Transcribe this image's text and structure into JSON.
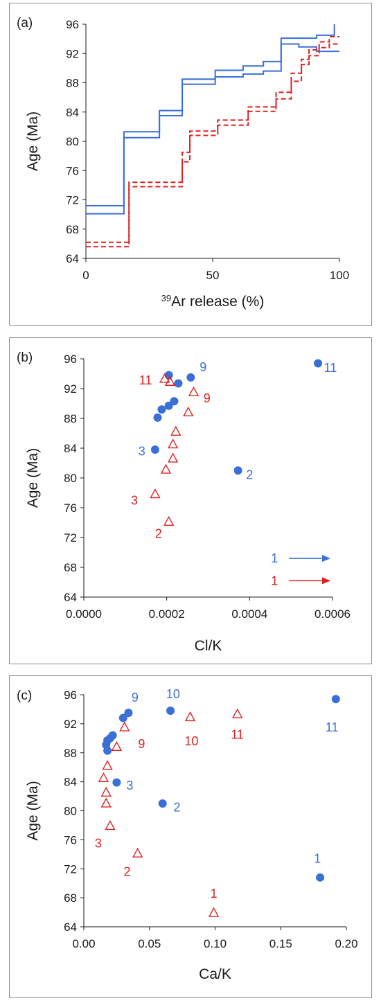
{
  "colors": {
    "blue": "#3a6fd8",
    "red": "#e02020",
    "axis": "#1a1a1a"
  },
  "chart_data": [
    {
      "panel": "(a)",
      "type": "line",
      "xlabel_base": "Ar release (%)",
      "xlabel_sup": "39",
      "ylabel": "Age (Ma)",
      "xlim": [
        0,
        100
      ],
      "ylim": [
        64,
        96
      ],
      "xticks": [
        "0",
        "50",
        "100"
      ],
      "yticks": [
        "64",
        "68",
        "72",
        "76",
        "80",
        "84",
        "88",
        "92",
        "96"
      ],
      "grid": false,
      "series": [
        {
          "color": "blue",
          "dash": false,
          "x": [
            0,
            15,
            15,
            29,
            29,
            38,
            38,
            51,
            51,
            62,
            62,
            70,
            70,
            77,
            77,
            91,
            91,
            98,
            98
          ],
          "y": [
            71.2,
            71.2,
            81.3,
            81.3,
            84.2,
            84.2,
            88.5,
            88.5,
            89.7,
            89.7,
            90.3,
            90.3,
            90.9,
            90.9,
            94.1,
            94.1,
            94.5,
            94.5,
            96.0
          ]
        },
        {
          "color": "blue",
          "dash": false,
          "x": [
            0,
            15,
            15,
            29,
            29,
            38,
            38,
            51,
            51,
            62,
            62,
            70,
            70,
            77,
            77,
            84,
            84,
            91,
            91,
            100
          ],
          "y": [
            70.1,
            70.1,
            80.5,
            80.5,
            83.5,
            83.5,
            87.8,
            87.8,
            88.8,
            88.8,
            89.2,
            89.2,
            89.6,
            89.6,
            93.3,
            93.3,
            92.9,
            92.9,
            92.3,
            92.3
          ]
        },
        {
          "color": "red",
          "dash": true,
          "x": [
            0,
            17,
            17,
            38,
            38,
            41,
            41,
            52,
            52,
            64,
            64,
            75,
            75,
            81,
            81,
            85,
            85,
            88,
            88,
            92,
            92,
            96,
            96,
            100
          ],
          "y": [
            66.2,
            66.2,
            74.4,
            74.4,
            78.5,
            78.5,
            81.4,
            81.4,
            82.9,
            82.9,
            84.7,
            84.7,
            86.7,
            86.7,
            89.3,
            89.3,
            91.2,
            91.2,
            92.5,
            92.5,
            93.6,
            93.6,
            94.3,
            94.3
          ]
        },
        {
          "color": "red",
          "dash": true,
          "x": [
            0,
            17,
            17,
            38,
            38,
            41,
            41,
            52,
            52,
            64,
            64,
            75,
            75,
            81,
            81,
            85,
            85,
            88,
            88,
            92,
            92,
            96,
            96,
            100
          ],
          "y": [
            65.6,
            65.6,
            73.8,
            73.8,
            77.2,
            77.2,
            80.8,
            80.8,
            82.2,
            82.2,
            84.1,
            84.1,
            85.8,
            85.8,
            88.2,
            88.2,
            90.5,
            90.5,
            91.7,
            91.7,
            92.8,
            92.8,
            93.3,
            93.3
          ]
        }
      ]
    },
    {
      "panel": "(b)",
      "type": "scatter",
      "xlabel": "Cl/K",
      "ylabel": "Age (Ma)",
      "xlim": [
        0,
        0.0006
      ],
      "ylim": [
        64,
        96
      ],
      "xticks": [
        "0.0000",
        "0.0002",
        "0.0004",
        "0.0006"
      ],
      "yticks": [
        "64",
        "68",
        "72",
        "76",
        "80",
        "84",
        "88",
        "92",
        "96"
      ],
      "grid": false,
      "series": [
        {
          "color": "blue",
          "marker": "circle",
          "x": [
            0.000172,
            0.000178,
            0.000188,
            0.000205,
            0.000218,
            0.000205,
            0.000228,
            0.000258,
            0.000372,
            0.000565
          ],
          "y": [
            83.8,
            88.1,
            89.2,
            89.7,
            90.3,
            93.8,
            92.7,
            93.5,
            81.0,
            95.4
          ]
        },
        {
          "color": "red",
          "marker": "triangle",
          "x": [
            0.000205,
            0.000172,
            0.000198,
            0.000215,
            0.000215,
            0.000222,
            0.000252,
            0.000265,
            0.000195,
            0.000208
          ],
          "y": [
            74.2,
            77.9,
            81.2,
            82.7,
            84.6,
            86.3,
            88.9,
            91.6,
            93.4,
            93.0
          ]
        }
      ],
      "labels": [
        {
          "text": "3",
          "color": "blue",
          "x": 0.00014,
          "y": 83.6
        },
        {
          "text": "9",
          "color": "blue",
          "x": 0.000288,
          "y": 94.9
        },
        {
          "text": "2",
          "color": "blue",
          "x": 0.0004,
          "y": 80.4
        },
        {
          "text": "11",
          "color": "blue",
          "x": 0.000595,
          "y": 94.8
        },
        {
          "text": "11",
          "color": "red",
          "x": 0.000149,
          "y": 93.1
        },
        {
          "text": "9",
          "color": "red",
          "x": 0.000297,
          "y": 90.7
        },
        {
          "text": "3",
          "color": "red",
          "x": 0.000122,
          "y": 77.0
        },
        {
          "text": "2",
          "color": "red",
          "x": 0.00018,
          "y": 72.5
        }
      ],
      "arrows": [
        {
          "text": "1",
          "color": "blue",
          "y": 69.2,
          "label_x": 0.00046,
          "from_x": 0.000495,
          "to_x": 0.000595
        },
        {
          "text": "1",
          "color": "red",
          "y": 66.2,
          "label_x": 0.00046,
          "from_x": 0.000495,
          "to_x": 0.000595
        }
      ]
    },
    {
      "panel": "(c)",
      "type": "scatter",
      "xlabel": "Ca/K",
      "ylabel": "Age (Ma)",
      "xlim": [
        0,
        0.2
      ],
      "ylim": [
        64,
        96
      ],
      "xticks": [
        "0.00",
        "0.05",
        "0.10",
        "0.15",
        "0.20"
      ],
      "yticks": [
        "64",
        "68",
        "72",
        "76",
        "80",
        "84",
        "88",
        "92",
        "96"
      ],
      "grid": false,
      "series": [
        {
          "color": "blue",
          "marker": "circle",
          "x": [
            0.018,
            0.017,
            0.018,
            0.02,
            0.022,
            0.025,
            0.03,
            0.034,
            0.06,
            0.066,
            0.18,
            0.192
          ],
          "y": [
            88.3,
            89.1,
            89.7,
            90.0,
            90.4,
            83.9,
            92.8,
            93.5,
            81.0,
            93.8,
            70.8,
            95.4
          ]
        },
        {
          "color": "red",
          "marker": "triangle",
          "x": [
            0.041,
            0.02,
            0.017,
            0.017,
            0.015,
            0.018,
            0.025,
            0.031,
            0.081,
            0.117,
            0.099
          ],
          "y": [
            74.2,
            78.0,
            81.1,
            82.6,
            84.6,
            86.3,
            88.9,
            91.6,
            93.0,
            93.4,
            66.0
          ]
        }
      ],
      "labels": [
        {
          "text": "9",
          "color": "blue",
          "x": 0.039,
          "y": 95.6
        },
        {
          "text": "10",
          "color": "blue",
          "x": 0.068,
          "y": 96.1
        },
        {
          "text": "3",
          "color": "blue",
          "x": 0.035,
          "y": 83.5
        },
        {
          "text": "2",
          "color": "blue",
          "x": 0.071,
          "y": 80.5
        },
        {
          "text": "11",
          "color": "blue",
          "x": 0.189,
          "y": 91.5
        },
        {
          "text": "1",
          "color": "blue",
          "x": 0.178,
          "y": 73.4
        },
        {
          "text": "9",
          "color": "red",
          "x": 0.044,
          "y": 89.2
        },
        {
          "text": "10",
          "color": "red",
          "x": 0.082,
          "y": 89.6
        },
        {
          "text": "11",
          "color": "red",
          "x": 0.117,
          "y": 90.5
        },
        {
          "text": "3",
          "color": "red",
          "x": 0.011,
          "y": 75.5
        },
        {
          "text": "2",
          "color": "red",
          "x": 0.033,
          "y": 71.6
        },
        {
          "text": "1",
          "color": "red",
          "x": 0.099,
          "y": 68.6
        }
      ]
    }
  ]
}
